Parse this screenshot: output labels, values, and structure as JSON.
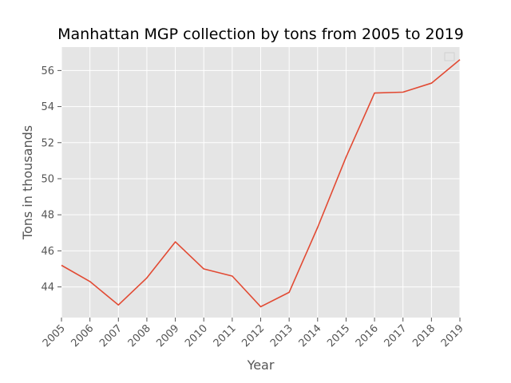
{
  "chart_data": {
    "type": "line",
    "title": "Manhattan MGP collection by tons from 2005 to 2019",
    "xlabel": "Year",
    "ylabel": "Tons in thousands",
    "x": [
      "2005",
      "2006",
      "2007",
      "2008",
      "2009",
      "2010",
      "2011",
      "2012",
      "2013",
      "2014",
      "2015",
      "2016",
      "2017",
      "2018",
      "2019"
    ],
    "series": [
      {
        "values": [
          45.2,
          44.3,
          43.0,
          44.5,
          46.5,
          45.0,
          44.6,
          42.9,
          43.7,
          47.3,
          51.2,
          54.75,
          54.8,
          55.3,
          56.6
        ]
      }
    ],
    "ylim": [
      42.3,
      57.3
    ],
    "yticks": [
      44,
      46,
      48,
      50,
      52,
      54,
      56
    ],
    "grid": true,
    "legend": "top-right",
    "colors": {
      "line": "#e24a33",
      "plot_background": "#e5e5e5",
      "grid": "#ffffff"
    }
  }
}
